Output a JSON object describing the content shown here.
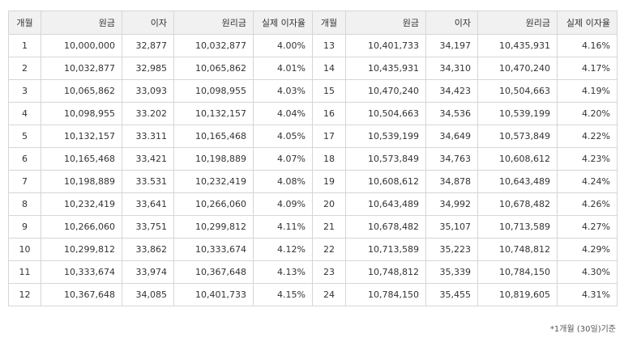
{
  "table": {
    "headers": [
      "개월",
      "원금",
      "이자",
      "원리금",
      "실제 이자율",
      "개월",
      "원금",
      "이자",
      "원리금",
      "실제 이자율"
    ],
    "rows": [
      [
        "1",
        "10,000,000",
        "32,877",
        "10,032,877",
        "4.00%",
        "13",
        "10,401,733",
        "34,197",
        "10,435,931",
        "4.16%"
      ],
      [
        "2",
        "10,032,877",
        "32,985",
        "10,065,862",
        "4.01%",
        "14",
        "10,435,931",
        "34,310",
        "10,470,240",
        "4.17%"
      ],
      [
        "3",
        "10,065,862",
        "33,093",
        "10,098,955",
        "4.03%",
        "15",
        "10,470,240",
        "34,423",
        "10,504,663",
        "4.19%"
      ],
      [
        "4",
        "10,098,955",
        "33.202",
        "10,132,157",
        "4.04%",
        "16",
        "10,504,663",
        "34,536",
        "10,539,199",
        "4.20%"
      ],
      [
        "5",
        "10,132,157",
        "33.311",
        "10,165,468",
        "4.05%",
        "17",
        "10,539,199",
        "34,649",
        "10,573,849",
        "4.22%"
      ],
      [
        "6",
        "10,165,468",
        "33,421",
        "10,198,889",
        "4.07%",
        "18",
        "10,573,849",
        "34,763",
        "10,608,612",
        "4.23%"
      ],
      [
        "7",
        "10,198,889",
        "33.531",
        "10,232,419",
        "4.08%",
        "19",
        "10,608,612",
        "34,878",
        "10,643,489",
        "4.24%"
      ],
      [
        "8",
        "10,232,419",
        "33,641",
        "10,266,060",
        "4.09%",
        "20",
        "10,643,489",
        "34,992",
        "10,678,482",
        "4.26%"
      ],
      [
        "9",
        "10,266,060",
        "33,751",
        "10,299,812",
        "4.11%",
        "21",
        "10,678,482",
        "35,107",
        "10,713,589",
        "4.27%"
      ],
      [
        "10",
        "10,299,812",
        "33,862",
        "10,333,674",
        "4.12%",
        "22",
        "10,713,589",
        "35,223",
        "10,748,812",
        "4.29%"
      ],
      [
        "11",
        "10,333,674",
        "33,974",
        "10,367,648",
        "4.13%",
        "23",
        "10,748,812",
        "35,339",
        "10,784,150",
        "4.30%"
      ],
      [
        "12",
        "10,367,648",
        "34,085",
        "10,401,733",
        "4.15%",
        "24",
        "10,784,150",
        "35,455",
        "10,819,605",
        "4.31%"
      ]
    ]
  },
  "footnote": "*1개월 (30일)기준"
}
